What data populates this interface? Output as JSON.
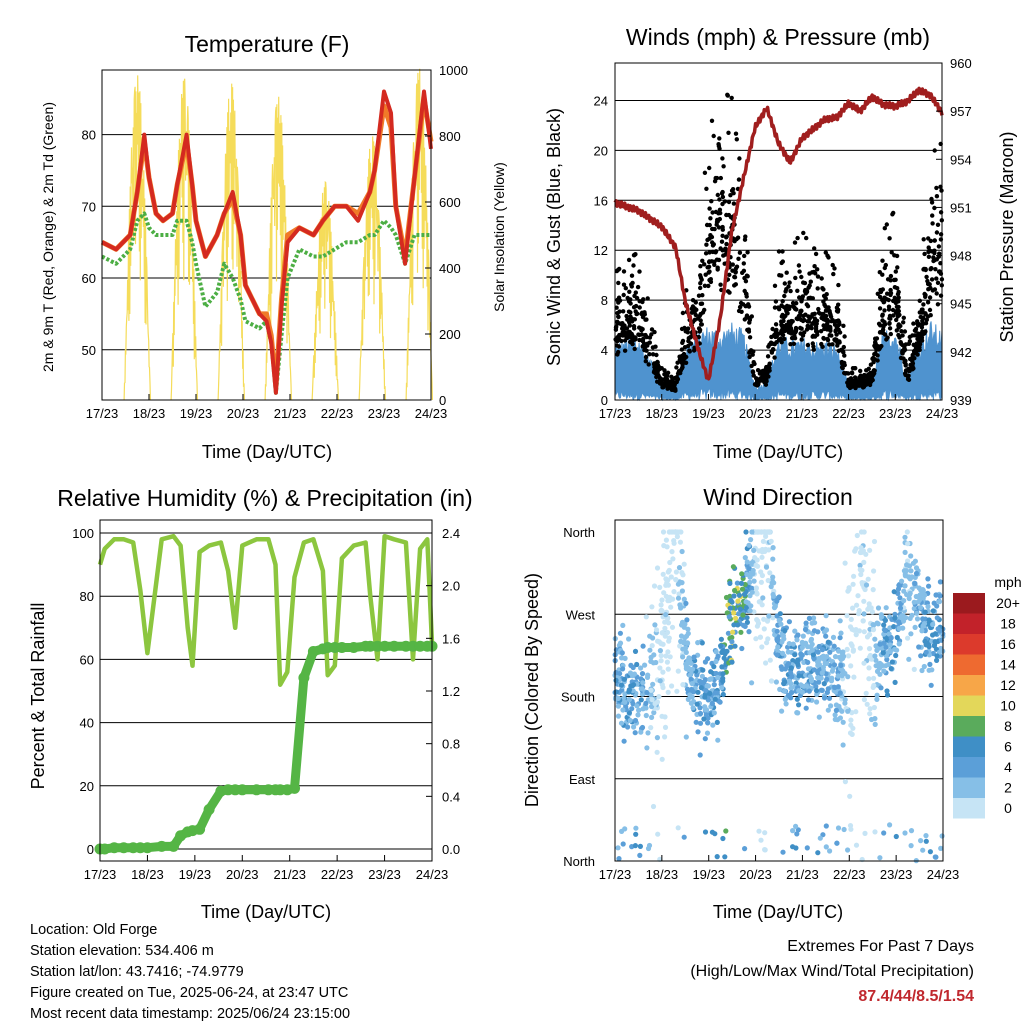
{
  "colors": {
    "temp2m": "#d42a20",
    "temp9m": "#f07a28",
    "dewpoint": "#4cae44",
    "solar": "#f5dc5a",
    "wind": "#4f93cf",
    "gust": "#000000",
    "pressure": "#a01e1e",
    "rh": "#8cc63f",
    "precip": "#55b545"
  },
  "x_ticks": [
    "17/23",
    "18/23",
    "19/23",
    "20/23",
    "21/23",
    "22/23",
    "23/23",
    "24/23"
  ],
  "panels": {
    "temperature": {
      "title": "Temperature (F)",
      "ylabel_left": "2m & 9m T (Red, Orange) & 2m Td (Green)",
      "ylabel_right": "Solar Insolation (Yellow)",
      "xlabel": "Time (Day/UTC)",
      "y_ticks": [
        "50",
        "60",
        "70",
        "80"
      ],
      "y2_ticks": [
        "0",
        "200",
        "400",
        "600",
        "800",
        "1000"
      ]
    },
    "wind": {
      "title": "Winds (mph) & Pressure (mb)",
      "ylabel_left": "Sonic Wind & Gust (Blue, Black)",
      "ylabel_right": "Station Pressure (Maroon)",
      "xlabel": "Time (Day/UTC)",
      "y_ticks": [
        "0",
        "4",
        "8",
        "12",
        "16",
        "20",
        "24"
      ],
      "y2_ticks": [
        "939",
        "942",
        "945",
        "948",
        "951",
        "954",
        "957",
        "960"
      ]
    },
    "humidity": {
      "title": "Relative Humidity (%) & Precipitation (in)",
      "ylabel_left": "Percent & Total Rainfall",
      "xlabel": "Time (Day/UTC)",
      "y_ticks": [
        "0",
        "20",
        "40",
        "60",
        "80",
        "100"
      ],
      "y2_ticks": [
        "0.0",
        "0.4",
        "0.8",
        "1.2",
        "1.6",
        "2.0",
        "2.4"
      ]
    },
    "direction": {
      "title": "Wind Direction",
      "ylabel_left": "Direction (Colored By Speed)",
      "xlabel": "Time (Day/UTC)",
      "y_ticks": [
        "North",
        "East",
        "South",
        "West",
        "North"
      ],
      "legend_title": "mph",
      "legend_labels": [
        "20+",
        "18",
        "16",
        "14",
        "12",
        "10",
        "8",
        "6",
        "4",
        "2",
        "0"
      ],
      "legend_colors": [
        "#9b1a1e",
        "#c2222a",
        "#dc3a2c",
        "#ee6a30",
        "#f7a648",
        "#e3d75a",
        "#5aab5c",
        "#3f8fc6",
        "#5b9fd8",
        "#86bfe7",
        "#c6e4f5"
      ]
    }
  },
  "chart_data": [
    {
      "type": "line",
      "title": "Temperature (F)",
      "xlabel": "Time (Day/UTC)",
      "ylabel": "2m & 9m T (Red, Orange) & 2m Td (Green)",
      "y2label": "Solar Insolation (Yellow)",
      "ylim": [
        43,
        89
      ],
      "y2lim": [
        0,
        1000
      ],
      "x": [
        17.0,
        17.3,
        17.6,
        17.75,
        17.9,
        18.0,
        18.15,
        18.3,
        18.5,
        18.6,
        18.8,
        18.92,
        19.0,
        19.2,
        19.45,
        19.6,
        19.78,
        19.95,
        20.05,
        20.35,
        20.5,
        20.6,
        20.7,
        20.82,
        20.95,
        21.2,
        21.5,
        21.7,
        21.95,
        22.2,
        22.45,
        22.7,
        22.8,
        23.0,
        23.15,
        23.25,
        23.45,
        23.65,
        23.85,
        24.0
      ],
      "series": [
        {
          "name": "2m T",
          "values": [
            65,
            64,
            66,
            72,
            80,
            74,
            69,
            68,
            69,
            73,
            80,
            73,
            68,
            63,
            66,
            69,
            72,
            66,
            59,
            55,
            54,
            51,
            44,
            56,
            65,
            67,
            66,
            68,
            70,
            70,
            68,
            72,
            75,
            86,
            83,
            70,
            62,
            74,
            86,
            78
          ]
        },
        {
          "name": "9m T",
          "values": [
            65,
            64,
            66,
            72,
            79,
            74,
            69,
            68,
            69,
            73,
            79,
            73,
            68,
            63,
            66,
            69,
            71,
            66,
            59,
            55,
            55,
            52,
            45,
            57,
            66,
            67,
            66,
            68,
            70,
            70,
            69,
            72,
            75,
            84,
            81,
            70,
            63,
            74,
            85,
            79
          ]
        },
        {
          "name": "2m Td",
          "values": [
            63,
            62,
            64,
            68,
            69,
            67,
            66,
            66,
            66,
            68,
            68,
            65,
            62,
            56,
            58,
            62,
            60,
            57,
            54,
            53,
            54,
            51,
            44,
            52,
            60,
            64,
            63,
            63,
            64,
            65,
            65,
            66,
            66,
            68,
            67,
            66,
            62,
            66,
            66,
            66
          ]
        }
      ],
      "solar_peaks": [
        {
          "day": 17.75,
          "value": 985
        },
        {
          "day": 18.75,
          "value": 975
        },
        {
          "day": 19.75,
          "value": 960
        },
        {
          "day": 20.75,
          "value": 920
        },
        {
          "day": 21.75,
          "value": 660
        },
        {
          "day": 22.75,
          "value": 800
        },
        {
          "day": 23.75,
          "value": 1005
        }
      ]
    },
    {
      "type": "scatter",
      "title": "Winds (mph) & Pressure (mb)",
      "xlabel": "Time (Day/UTC)",
      "ylabel": "Sonic Wind & Gust (Blue, Black)",
      "y2label": "Station Pressure (Maroon)",
      "ylim": [
        0,
        27
      ],
      "y2lim": [
        939,
        960
      ],
      "x": [
        17.0,
        17.5,
        18.0,
        18.3,
        18.5,
        18.8,
        19.0,
        19.25,
        19.5,
        19.75,
        20.0,
        20.25,
        20.5,
        20.75,
        21.0,
        21.25,
        21.5,
        21.75,
        22.0,
        22.25,
        22.5,
        22.75,
        23.0,
        23.25,
        23.5,
        23.75,
        24.0
      ],
      "series": [
        {
          "name": "Wind mean",
          "values": [
            2.5,
            2.8,
            0.8,
            0.6,
            2.5,
            3.0,
            3.2,
            3.0,
            3.3,
            3.0,
            0.6,
            0.8,
            2.8,
            2.6,
            2.7,
            2.5,
            2.6,
            2.4,
            0.6,
            0.7,
            0.9,
            3.0,
            3.2,
            1.0,
            2.5,
            3.4,
            3.0
          ]
        },
        {
          "name": "Gust typical",
          "values": [
            6,
            7,
            1.5,
            1.2,
            5,
            7,
            13,
            15,
            14,
            10,
            1.5,
            2,
            7,
            7,
            8,
            7,
            7,
            6,
            1.5,
            1.5,
            2,
            8,
            9,
            2,
            6,
            11,
            13
          ]
        },
        {
          "name": "Pressure",
          "values": [
            951.3,
            950.8,
            949.8,
            948.5,
            945.2,
            942.0,
            940.2,
            944.0,
            949.5,
            952.8,
            956.0,
            957.2,
            955.0,
            953.8,
            955.3,
            955.9,
            956.5,
            956.6,
            957.5,
            957.0,
            957.9,
            957.4,
            957.3,
            957.6,
            958.3,
            958.0,
            956.9
          ]
        }
      ]
    },
    {
      "type": "line",
      "title": "Relative Humidity (%) & Precipitation (in)",
      "xlabel": "Time (Day/UTC)",
      "ylabel": "Percent & Total Rainfall",
      "ylim": [
        0,
        100
      ],
      "y2lim": [
        0,
        2.4
      ],
      "x": [
        17.0,
        17.1,
        17.3,
        17.5,
        17.7,
        17.85,
        18.0,
        18.3,
        18.55,
        18.7,
        18.85,
        18.95,
        19.1,
        19.3,
        19.55,
        19.7,
        19.85,
        20.0,
        20.3,
        20.55,
        20.7,
        20.8,
        20.95,
        21.1,
        21.3,
        21.5,
        21.7,
        21.8,
        21.95,
        22.1,
        22.35,
        22.6,
        22.7,
        22.85,
        23.0,
        23.2,
        23.45,
        23.6,
        23.75,
        23.9,
        24.0
      ],
      "series": [
        {
          "name": "RH",
          "values": [
            90,
            95,
            98,
            98,
            97,
            82,
            62,
            98,
            99,
            96,
            70,
            58,
            94,
            96,
            97,
            88,
            70,
            96,
            98,
            98,
            90,
            52,
            56,
            86,
            97,
            98,
            88,
            55,
            58,
            92,
            96,
            97,
            80,
            60,
            99,
            98,
            97,
            60,
            95,
            98,
            65
          ]
        },
        {
          "name": "Total Precip",
          "values": [
            0,
            0,
            0.01,
            0.01,
            0.01,
            0.01,
            0.01,
            0.02,
            0.02,
            0.1,
            0.13,
            0.14,
            0.15,
            0.3,
            0.44,
            0.45,
            0.45,
            0.45,
            0.45,
            0.45,
            0.45,
            0.45,
            0.45,
            0.46,
            1.3,
            1.5,
            1.52,
            1.53,
            1.53,
            1.53,
            1.53,
            1.54,
            1.54,
            1.54,
            1.54,
            1.54,
            1.54,
            1.54,
            1.54,
            1.54,
            1.54
          ]
        }
      ]
    },
    {
      "type": "scatter",
      "title": "Wind Direction",
      "xlabel": "Time (Day/UTC)",
      "ylabel": "Direction (Colored By Speed)",
      "ylim": [
        0,
        360
      ],
      "y_categories": [
        "North",
        "East",
        "South",
        "West",
        "North"
      ],
      "x": [
        17.0,
        17.5,
        17.9,
        18.3,
        18.6,
        19.0,
        19.25,
        19.5,
        19.7,
        20.0,
        20.3,
        20.5,
        20.75,
        21.0,
        21.25,
        21.5,
        21.75,
        22.0,
        22.25,
        22.5,
        22.75,
        23.0,
        23.25,
        23.5,
        23.75,
        24.0
      ],
      "series": [
        {
          "name": "Direction (deg)",
          "values": [
            195,
            185,
            200,
            330,
            200,
            185,
            195,
            280,
            275,
            330,
            340,
            230,
            210,
            215,
            210,
            220,
            200,
            200,
            330,
            215,
            230,
            250,
            320,
            270,
            250,
            245
          ]
        },
        {
          "name": "Speed (mph)",
          "values": [
            2.5,
            2.8,
            0.8,
            0.6,
            2.5,
            3.0,
            3.2,
            6.5,
            5.5,
            0.6,
            0.8,
            2.8,
            2.6,
            2.7,
            2.5,
            2.6,
            2.4,
            0.6,
            0.7,
            0.9,
            3.0,
            3.2,
            1.0,
            2.5,
            3.4,
            3.0
          ]
        }
      ]
    }
  ],
  "info": {
    "location": "Location: Old Forge",
    "elevation": "Station elevation: 534.406 m",
    "latlon": "Station lat/lon: 43.7416; -74.9779",
    "created": "Figure created on Tue, 2025-06-24, at 23:47 UTC",
    "recent": "Most recent data timestamp: 2025/06/24 23:15:00"
  },
  "extremes": {
    "title": "Extremes For Past 7 Days",
    "subtitle": "(High/Low/Max Wind/Total Precipitation)",
    "values": "87.4/44/8.5/1.54"
  }
}
